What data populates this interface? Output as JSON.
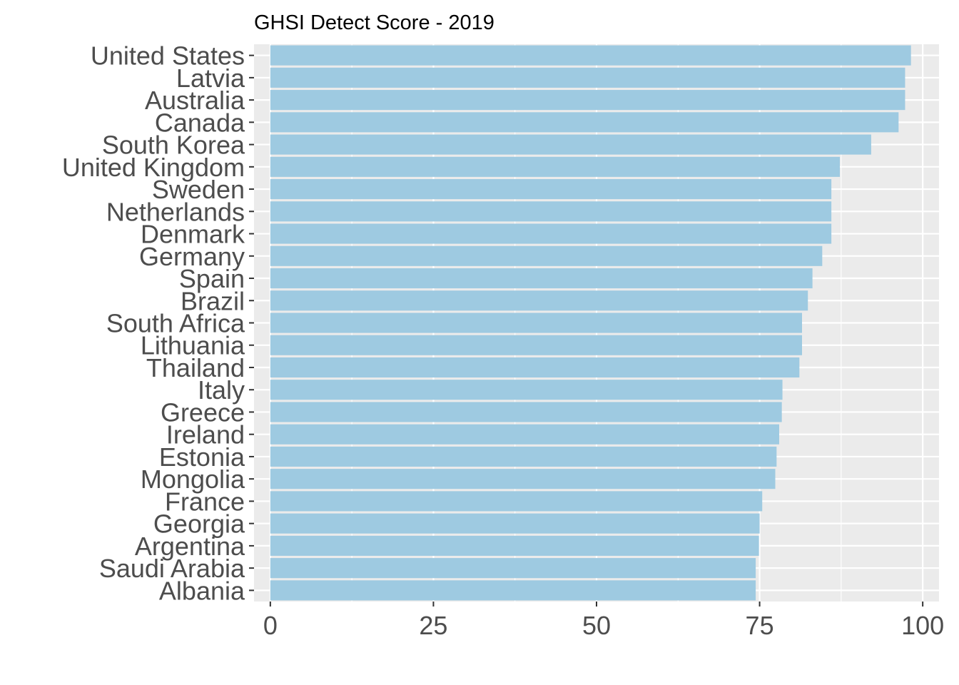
{
  "chart_data": {
    "type": "bar",
    "orientation": "horizontal",
    "title": "GHSI Detect Score - 2019",
    "xlabel": "",
    "ylabel": "",
    "xlim": [
      -2.5,
      102.5
    ],
    "x_ticks": [
      0,
      25,
      50,
      75,
      100
    ],
    "grid": true,
    "legend": "none",
    "colors": {
      "bar": "#9ecae1",
      "panel_background": "#ebebeb",
      "grid": "#ffffff",
      "axis_text": "#4d4d4d",
      "tick_mark": "#333333",
      "title": "#000000"
    },
    "categories": [
      "United States",
      "Latvia",
      "Australia",
      "Canada",
      "South Korea",
      "United Kingdom",
      "Sweden",
      "Netherlands",
      "Denmark",
      "Germany",
      "Spain",
      "Brazil",
      "South Africa",
      "Lithuania",
      "Thailand",
      "Italy",
      "Greece",
      "Ireland",
      "Estonia",
      "Mongolia",
      "France",
      "Georgia",
      "Argentina",
      "Saudi Arabia",
      "Albania"
    ],
    "values": [
      98.2,
      97.3,
      97.3,
      96.3,
      92.1,
      87.3,
      86.0,
      86.0,
      86.0,
      84.6,
      83.1,
      82.4,
      81.5,
      81.5,
      81.1,
      78.5,
      78.4,
      78.0,
      77.6,
      77.4,
      75.4,
      75.0,
      74.9,
      74.4,
      74.4
    ]
  }
}
